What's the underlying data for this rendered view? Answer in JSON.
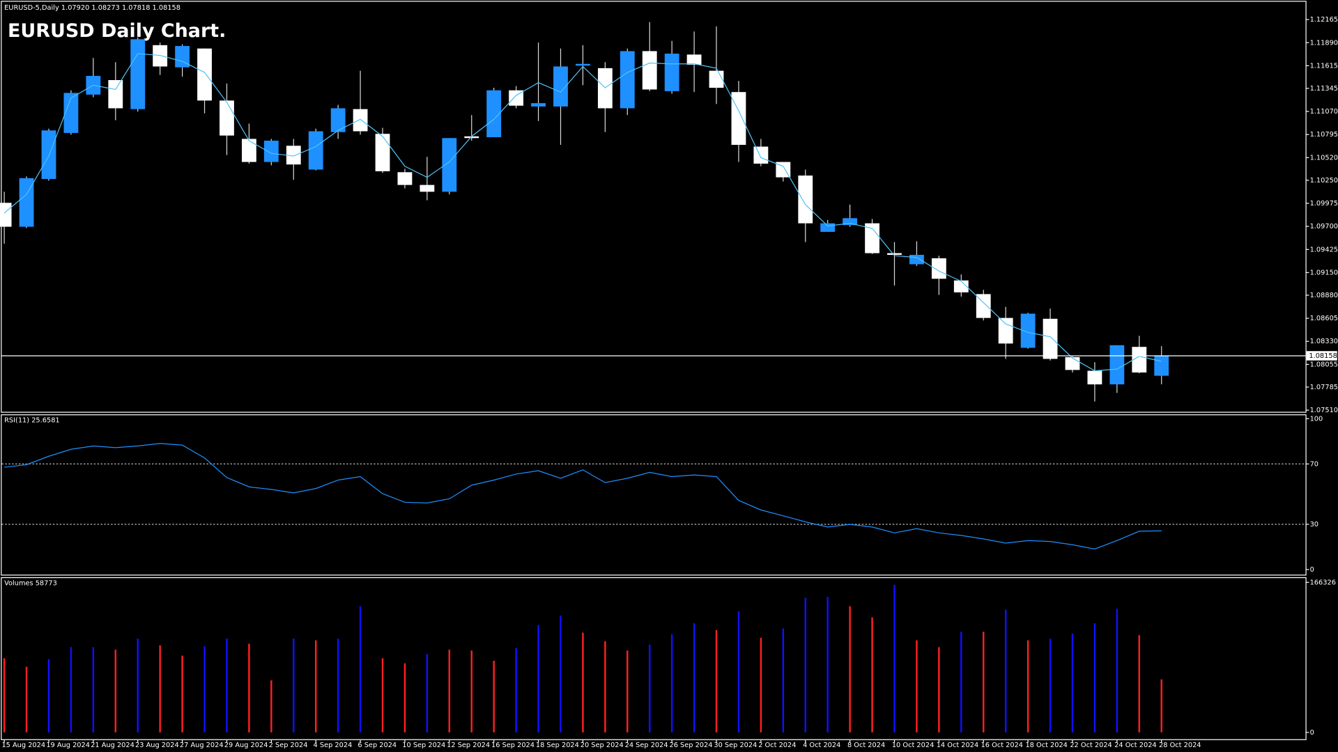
{
  "chart_data": [
    {
      "type": "candlestick",
      "title": "EURUSD-5,Daily  1.07920 1.08273 1.07818 1.08158",
      "annotation": "EURUSD Daily Chart.",
      "categories": [
        "15 Aug 2024",
        null,
        "19 Aug 2024",
        null,
        "21 Aug 2024",
        null,
        "23 Aug 2024",
        null,
        "27 Aug 2024",
        null,
        "29 Aug 2024",
        null,
        "2 Sep 2024",
        null,
        "4 Sep 2024",
        null,
        "6 Sep 2024",
        null,
        "10 Sep 2024",
        null,
        "12 Sep 2024",
        null,
        "16 Sep 2024",
        null,
        "18 Sep 2024",
        null,
        "20 Sep 2024",
        null,
        "24 Sep 2024",
        null,
        "26 Sep 2024",
        null,
        "30 Sep 2024",
        null,
        "2 Oct 2024",
        null,
        "4 Oct 2024",
        null,
        "8 Oct 2024",
        null,
        "10 Oct 2024",
        null,
        "14 Oct 2024",
        null,
        "16 Oct 2024",
        null,
        "18 Oct 2024",
        null,
        "22 Oct 2024",
        null,
        "24 Oct 2024",
        null,
        "28 Oct 2024"
      ],
      "open": [
        1.09981,
        1.09696,
        1.10265,
        1.10814,
        1.11271,
        1.11444,
        1.11098,
        1.1186,
        1.11596,
        1.1182,
        1.112,
        1.10743,
        1.10468,
        1.10661,
        1.10377,
        1.10824,
        1.11098,
        1.10803,
        1.10346,
        1.10194,
        1.10113,
        1.10773,
        1.10763,
        1.11322,
        1.11129,
        1.11129,
        1.11616,
        1.11586,
        1.11108,
        1.11789,
        1.11312,
        1.11748,
        1.11555,
        1.11301,
        1.10651,
        1.10468,
        1.10306,
        1.09635,
        1.09716,
        1.09737,
        1.09381,
        1.09249,
        1.0932,
        1.09056,
        1.08893,
        1.08609,
        1.08253,
        1.08599,
        1.08142,
        1.07979,
        1.07817,
        1.08264,
        1.0792
      ],
      "high": [
        1.10113,
        1.10296,
        1.10865,
        1.11322,
        1.11708,
        1.11657,
        1.11952,
        1.11891,
        1.1187,
        1.1182,
        1.11403,
        1.10925,
        1.10743,
        1.10743,
        1.10865,
        1.11149,
        1.11555,
        1.10875,
        1.10387,
        1.10529,
        1.10753,
        1.11027,
        1.11352,
        1.11373,
        1.11891,
        1.1182,
        1.1186,
        1.11657,
        1.1182,
        1.12135,
        1.11911,
        1.12023,
        1.12084,
        1.11434,
        1.10743,
        1.10468,
        1.10377,
        1.09777,
        1.0996,
        1.09788,
        1.09513,
        1.09523,
        1.09351,
        1.09127,
        1.08944,
        1.08741,
        1.0867,
        1.08721,
        1.08152,
        1.08081,
        1.08284,
        1.08396,
        1.08273
      ],
      "low": [
        1.09493,
        1.0968,
        1.10245,
        1.10793,
        1.1124,
        1.10966,
        1.11068,
        1.11505,
        1.11484,
        1.11047,
        1.1055,
        1.10448,
        1.10428,
        1.10255,
        1.10367,
        1.10743,
        1.10793,
        1.10336,
        1.10153,
        1.10011,
        1.10082,
        1.10722,
        1.10763,
        1.11108,
        1.10956,
        1.10672,
        1.11383,
        1.10824,
        1.11027,
        1.11312,
        1.11281,
        1.11301,
        1.11159,
        1.10468,
        1.10417,
        1.10235,
        1.09513,
        1.09635,
        1.09696,
        1.09371,
        1.08995,
        1.09229,
        1.08883,
        1.08863,
        1.08579,
        1.08121,
        1.08243,
        1.08101,
        1.07959,
        1.07613,
        1.07715,
        1.07949,
        1.07818
      ],
      "close": [
        1.09696,
        1.10275,
        1.10844,
        1.11291,
        1.11494,
        1.11108,
        1.11931,
        1.11606,
        1.1185,
        1.112,
        1.10783,
        1.10468,
        1.10722,
        1.10438,
        1.10834,
        1.11108,
        1.10834,
        1.10357,
        1.10194,
        1.10113,
        1.10753,
        1.10753,
        1.11322,
        1.11139,
        1.11169,
        1.11606,
        1.11637,
        1.11108,
        1.11789,
        1.11332,
        1.11759,
        1.11627,
        1.11352,
        1.10672,
        1.10448,
        1.10285,
        1.09737,
        1.09737,
        1.09798,
        1.09381,
        1.09361,
        1.09361,
        1.09076,
        1.08914,
        1.08609,
        1.08304,
        1.0866,
        1.08121,
        1.07989,
        1.07817,
        1.08284,
        1.07959,
        1.08158
      ],
      "ma_values": [
        1.09859,
        1.10082,
        1.10539,
        1.1123,
        1.11383,
        1.11332,
        1.11759,
        1.11738,
        1.11667,
        1.11535,
        1.11179,
        1.10722,
        1.1057,
        1.10539,
        1.10651,
        1.10844,
        1.10976,
        1.10773,
        1.10417,
        1.10285,
        1.10468,
        1.10773,
        1.10976,
        1.11261,
        1.11413,
        1.11301,
        1.11606,
        1.11352,
        1.11535,
        1.11647,
        1.11637,
        1.11637,
        1.11586,
        1.11078,
        1.10519,
        1.10417,
        1.0996,
        1.09706,
        1.09737,
        1.09676,
        1.09351,
        1.0933,
        1.09168,
        1.09046,
        1.08792,
        1.08538,
        1.08436,
        1.08385,
        1.08131,
        1.07979,
        1.07999,
        1.08152,
        1.08091
      ],
      "ma_color": "#4fc3f7",
      "up_color": "#1e90ff",
      "down_color": "#ffffff",
      "ylim": [
        1.0748,
        1.12378
      ],
      "yticks": [
        1.12165,
        {
          "value": 1.1189,
          "label": "1.11890"
        },
        1.11615,
        1.11345,
        {
          "value": 1.1107,
          "label": "1.11070"
        },
        1.10795,
        {
          "value": 1.1052,
          "label": "1.10520"
        },
        {
          "value": 1.1025,
          "label": "1.10250"
        },
        1.09975,
        {
          "value": 1.097,
          "label": "1.09700"
        },
        1.09425,
        {
          "value": 1.0915,
          "label": "1.09150"
        },
        {
          "value": 1.0888,
          "label": "1.08880"
        },
        1.08605,
        {
          "value": 1.0833,
          "label": "1.08330"
        },
        1.08055,
        1.07785,
        {
          "value": 1.0751,
          "label": "1.07510"
        }
      ]
    },
    {
      "type": "line",
      "title": "RSI(11)",
      "values": [
        67.8,
        69.5,
        75.1,
        79.7,
        81.9,
        80.8,
        81.9,
        83.6,
        82.5,
        74,
        61,
        54.8,
        53.1,
        50.8,
        53.7,
        59.3,
        61.6,
        50.3,
        44.6,
        44.1,
        46.9,
        55.9,
        59.3,
        63.3,
        65.5,
        60.5,
        66.1,
        57.6,
        60.5,
        64.4,
        61.6,
        62.7,
        61.6,
        45.8,
        39.5,
        35.6,
        31.6,
        28.2,
        29.9,
        28.2,
        24.3,
        27.1,
        24.3,
        22.6,
        20.3,
        17.5,
        19.2,
        18.6,
        16.4,
        13.6,
        19.2,
        25.4,
        25.6581
      ],
      "color": "#1e90ff",
      "levels": [
        30,
        70
      ],
      "ylim": [
        -3.4,
        102.3
      ],
      "yticks": [
        0,
        30,
        70,
        100
      ]
    },
    {
      "type": "bar",
      "title": "Volumes",
      "values": [
        82215,
        72765,
        81270,
        94500,
        94500,
        91665,
        103950,
        96390,
        85050,
        95445,
        103950,
        98280,
        57645,
        103950,
        102060,
        103950,
        139860,
        82215,
        76545,
        86940,
        91665,
        90720,
        79380,
        93555,
        119070,
        129465,
        110565,
        101115,
        90720,
        97335,
        108675,
        120960,
        113400,
        134190,
        104895,
        115290,
        149310,
        150255,
        139860,
        127575,
        163485,
        102060,
        94500,
        111510,
        111510,
        136080,
        102060,
        103950,
        109620,
        120960,
        137025,
        107730,
        58773
      ],
      "colors": [
        "#ff2020",
        "#ff2020",
        "#1010ff",
        "#1010ff",
        "#1010ff",
        "#ff2020",
        "#1010ff",
        "#ff2020",
        "#ff2020",
        "#1010ff",
        "#1010ff",
        "#ff2020",
        "#ff2020",
        "#1010ff",
        "#ff2020",
        "#1010ff",
        "#1010ff",
        "#ff2020",
        "#ff2020",
        "#1010ff",
        "#ff2020",
        "#ff2020",
        "#ff2020",
        "#1010ff",
        "#1010ff",
        "#1010ff",
        "#ff2020",
        "#ff2020",
        "#ff2020",
        "#1010ff",
        "#1010ff",
        "#1010ff",
        "#ff2020",
        "#1010ff",
        "#ff2020",
        "#1010ff",
        "#1010ff",
        "#1010ff",
        "#ff2020",
        "#ff2020",
        "#1010ff",
        "#ff2020",
        "#ff2020",
        "#1010ff",
        "#ff2020",
        "#1010ff",
        "#ff2020",
        "#1010ff",
        "#1010ff",
        "#1010ff",
        "#1010ff",
        "#ff2020",
        "#ff2020"
      ],
      "ylim": [
        -8505,
        171051
      ],
      "yticks": [
        0,
        166326
      ]
    }
  ]
}
